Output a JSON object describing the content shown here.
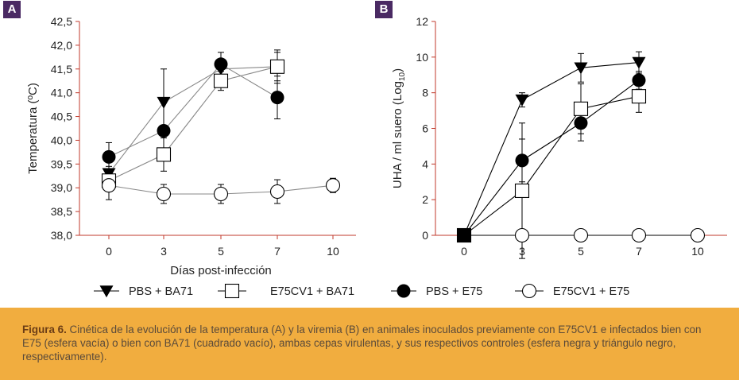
{
  "panels": {
    "a_label": "A",
    "b_label": "B"
  },
  "legend": [
    {
      "label": "PBS + BA71",
      "marker": "triangle-down-filled"
    },
    {
      "label": "E75CV1 + BA71",
      "marker": "square-open"
    },
    {
      "label": "PBS + E75",
      "marker": "circle-filled"
    },
    {
      "label": "E75CV1 + E75",
      "marker": "circle-open"
    }
  ],
  "caption": {
    "label": "Figura 6.",
    "text": "Cinética de la evolución de la temperatura (A) y la viremia (B) en animales inoculados previamente con E75CV1 e infectados bien con E75 (esfera vacía) o bien con BA71 (cuadrado vacío), ambas cepas virulentas, y sus respectivos controles (esfera negra y triángulo negro, respectivamente)."
  },
  "colors": {
    "axis": "#c0392b",
    "badge": "#4a2a63",
    "caption_bg": "#f1ad3f",
    "series": "#000000",
    "line": "#888888"
  },
  "chart_data": [
    {
      "type": "line",
      "panel": "A",
      "xlabel": "Días post-infección",
      "ylabel": "Temperatura (ºC)",
      "categories": [
        "0",
        "3",
        "5",
        "7",
        "10"
      ],
      "ylim": [
        38.0,
        42.5
      ],
      "yticks": [
        "38,0",
        "38,5",
        "39,0",
        "39,5",
        "40,0",
        "40,5",
        "41,0",
        "41,5",
        "42,0",
        "42,5"
      ],
      "grid": false,
      "series": [
        {
          "name": "PBS + BA71",
          "marker": "triangle-down-filled",
          "values": [
            39.3,
            40.8,
            41.5,
            41.55,
            null
          ],
          "err": [
            0.15,
            0.7,
            0.2,
            0.35,
            null
          ]
        },
        {
          "name": "E75CV1 + BA71",
          "marker": "square-open",
          "values": [
            39.15,
            39.7,
            41.25,
            41.55,
            null
          ],
          "err": [
            0.1,
            0.35,
            0.2,
            0.3,
            null
          ]
        },
        {
          "name": "PBS + E75",
          "marker": "circle-filled",
          "values": [
            39.65,
            40.2,
            41.6,
            40.9,
            null
          ],
          "err": [
            0.3,
            0.0,
            0.25,
            0.45,
            null
          ]
        },
        {
          "name": "E75CV1 + E75",
          "marker": "circle-open",
          "values": [
            39.05,
            38.87,
            38.87,
            38.92,
            39.05
          ],
          "err": [
            0.3,
            0.2,
            0.2,
            0.25,
            0.15
          ]
        }
      ]
    },
    {
      "type": "line",
      "panel": "B",
      "xlabel": "",
      "ylabel": "UHA / ml suero (Log10)",
      "ylabel_main": "UHA / ml suero (Log",
      "ylabel_sub": "10",
      "ylabel_end": ")",
      "categories": [
        "0",
        "3",
        "5",
        "7",
        "10"
      ],
      "ylim": [
        0,
        12
      ],
      "yticks": [
        "0",
        "2",
        "4",
        "6",
        "8",
        "10",
        "12"
      ],
      "grid": false,
      "series": [
        {
          "name": "PBS + BA71",
          "marker": "triangle-down-filled",
          "values": [
            0,
            7.6,
            9.4,
            9.7,
            null
          ],
          "err": [
            0,
            0.4,
            0.8,
            0.6,
            null
          ]
        },
        {
          "name": "E75CV1 + BA71",
          "marker": "square-open",
          "values": [
            0,
            2.5,
            7.1,
            7.8,
            null
          ],
          "err": [
            0,
            3.8,
            1.4,
            0.9,
            null
          ]
        },
        {
          "name": "PBS + E75",
          "marker": "circle-filled",
          "values": [
            0,
            4.2,
            6.3,
            8.7,
            null
          ],
          "err": [
            0,
            1.2,
            1.0,
            0.5,
            null
          ]
        },
        {
          "name": "E75CV1 + E75",
          "marker": "circle-open",
          "values": [
            0,
            0,
            0,
            0,
            0
          ],
          "err": [
            0,
            0,
            0,
            0,
            0
          ]
        }
      ]
    }
  ]
}
